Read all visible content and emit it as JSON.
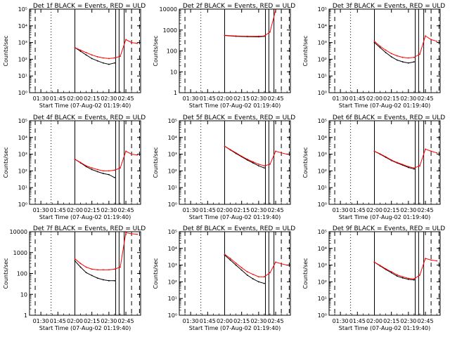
{
  "chart_data": [
    {
      "type": "line",
      "title": "Det 1f BLACK = Events, RED = ULD",
      "xlabel": "Start Time (07-Aug-02 01:19:40)",
      "ylabel": "Counts/sec",
      "xticks": [
        "01:30",
        "01:45",
        "02:00",
        "02:15",
        "02:30",
        "02:45"
      ],
      "yticks": [
        "10⁰",
        "10¹",
        "10²",
        "10³",
        "10⁴",
        "10⁵"
      ],
      "ylim": [
        1,
        100000
      ],
      "yscale": "log",
      "series": [
        {
          "color": "#000000",
          "x": [
            "02:00",
            "02:05",
            "02:10",
            "02:15",
            "02:20",
            "02:25",
            "02:30",
            "02:35"
          ],
          "y": [
            500,
            300,
            180,
            110,
            80,
            60,
            50,
            60
          ]
        },
        {
          "color": "#ff0000",
          "x": [
            "02:00",
            "02:05",
            "02:10",
            "02:15",
            "02:20",
            "02:25",
            "02:30",
            "02:35",
            "02:40",
            "02:45",
            "02:50",
            "02:55"
          ],
          "y": [
            500,
            350,
            250,
            180,
            140,
            120,
            110,
            120,
            150,
            1500,
            1000,
            900
          ]
        }
      ]
    },
    {
      "type": "line",
      "title": "Det 2f BLACK = Events, RED = ULD",
      "xlabel": "Start Time (07-Aug-02 01:19:40)",
      "ylabel": "Counts/sec",
      "xticks": [
        "01:30",
        "01:45",
        "02:00",
        "02:15",
        "02:30",
        "02:45"
      ],
      "yticks": [
        "1",
        "10",
        "100",
        "1000",
        "10000"
      ],
      "ylim": [
        1,
        10000
      ],
      "yscale": "log",
      "series": [
        {
          "color": "#000000",
          "x": [
            "02:00",
            "02:10",
            "02:20",
            "02:30",
            "02:35"
          ],
          "y": [
            550,
            500,
            480,
            470,
            500
          ]
        },
        {
          "color": "#ff0000",
          "x": [
            "02:00",
            "02:10",
            "02:20",
            "02:30",
            "02:35",
            "02:40",
            "02:45"
          ],
          "y": [
            560,
            520,
            500,
            500,
            520,
            800,
            9000
          ]
        }
      ]
    },
    {
      "type": "line",
      "title": "Det 3f BLACK = Events, RED = ULD",
      "xlabel": "Start Time (07-Aug-02 01:19:40)",
      "ylabel": "Counts/sec",
      "xticks": [
        "01:30",
        "01:45",
        "02:00",
        "02:15",
        "02:30",
        "02:45"
      ],
      "yticks": [
        "10⁰",
        "10¹",
        "10²",
        "10³",
        "10⁴",
        "10⁵"
      ],
      "ylim": [
        1,
        100000
      ],
      "yscale": "log",
      "series": [
        {
          "color": "#000000",
          "x": [
            "02:00",
            "02:05",
            "02:10",
            "02:15",
            "02:20",
            "02:25",
            "02:30",
            "02:35"
          ],
          "y": [
            1000,
            500,
            250,
            140,
            90,
            70,
            60,
            70
          ]
        },
        {
          "color": "#ff0000",
          "x": [
            "02:00",
            "02:05",
            "02:10",
            "02:15",
            "02:20",
            "02:25",
            "02:30",
            "02:35",
            "02:40",
            "02:45",
            "02:50",
            "02:55"
          ],
          "y": [
            1200,
            600,
            350,
            220,
            160,
            130,
            120,
            130,
            200,
            2500,
            1500,
            1200
          ]
        }
      ]
    },
    {
      "type": "line",
      "title": "Det 4f BLACK = Events, RED = ULD",
      "xlabel": "Start Time (07-Aug-02 01:19:40)",
      "ylabel": "Counts/sec",
      "xticks": [
        "01:30",
        "01:45",
        "02:00",
        "02:15",
        "02:30",
        "02:45"
      ],
      "yticks": [
        "10⁰",
        "10¹",
        "10²",
        "10³",
        "10⁴",
        "10⁵"
      ],
      "ylim": [
        1,
        100000
      ],
      "yscale": "log",
      "series": [
        {
          "color": "#000000",
          "x": [
            "02:00",
            "02:05",
            "02:10",
            "02:15",
            "02:20",
            "02:25",
            "02:30",
            "02:35"
          ],
          "y": [
            500,
            300,
            180,
            120,
            90,
            70,
            60,
            40
          ]
        },
        {
          "color": "#ff0000",
          "x": [
            "02:00",
            "02:05",
            "02:10",
            "02:15",
            "02:20",
            "02:25",
            "02:30",
            "02:35",
            "02:40",
            "02:45",
            "02:50",
            "02:55"
          ],
          "y": [
            500,
            320,
            200,
            150,
            120,
            100,
            100,
            110,
            150,
            1500,
            1000,
            900
          ]
        }
      ]
    },
    {
      "type": "line",
      "title": "Det 5f BLACK = Events, RED = ULD",
      "xlabel": "Start Time (07-Aug-02 01:19:40)",
      "ylabel": "Counts/sec",
      "xticks": [
        "01:30",
        "01:45",
        "02:00",
        "02:15",
        "02:30",
        "02:45"
      ],
      "yticks": [
        "10⁰",
        "10¹",
        "10²",
        "10³",
        "10⁴",
        "10⁵"
      ],
      "ylim": [
        1,
        100000
      ],
      "yscale": "log",
      "series": [
        {
          "color": "#000000",
          "x": [
            "02:00",
            "02:05",
            "02:10",
            "02:15",
            "02:20",
            "02:25",
            "02:30",
            "02:35"
          ],
          "y": [
            3000,
            1800,
            1100,
            700,
            450,
            300,
            200,
            150
          ]
        },
        {
          "color": "#ff0000",
          "x": [
            "02:00",
            "02:05",
            "02:10",
            "02:15",
            "02:20",
            "02:25",
            "02:30",
            "02:35",
            "02:40",
            "02:45",
            "02:50",
            "02:55"
          ],
          "y": [
            3000,
            1900,
            1200,
            750,
            500,
            350,
            250,
            200,
            250,
            1500,
            1200,
            1000
          ]
        }
      ]
    },
    {
      "type": "line",
      "title": "Det 6f BLACK = Events, RED = ULD",
      "xlabel": "Start Time (07-Aug-02 01:19:40)",
      "ylabel": "Counts/sec",
      "xticks": [
        "01:30",
        "01:45",
        "02:00",
        "02:15",
        "02:30",
        "02:45"
      ],
      "yticks": [
        "10⁰",
        "10¹",
        "10²",
        "10³",
        "10⁴",
        "10⁵"
      ],
      "ylim": [
        1,
        100000
      ],
      "yscale": "log",
      "series": [
        {
          "color": "#000000",
          "x": [
            "02:00",
            "02:05",
            "02:10",
            "02:15",
            "02:20",
            "02:25",
            "02:30",
            "02:35"
          ],
          "y": [
            1500,
            1000,
            650,
            420,
            300,
            220,
            160,
            130
          ]
        },
        {
          "color": "#ff0000",
          "x": [
            "02:00",
            "02:05",
            "02:10",
            "02:15",
            "02:20",
            "02:25",
            "02:30",
            "02:35",
            "02:40",
            "02:45",
            "02:50",
            "02:55"
          ],
          "y": [
            1500,
            1050,
            700,
            450,
            320,
            240,
            180,
            150,
            200,
            2000,
            1500,
            1200
          ]
        }
      ]
    },
    {
      "type": "line",
      "title": "Det 7f BLACK = Events, RED = ULD",
      "xlabel": "Start Time (07-Aug-02 01:19:40)",
      "ylabel": "Counts/sec",
      "xticks": [
        "01:30",
        "01:45",
        "02:00",
        "02:15",
        "02:30",
        "02:45"
      ],
      "yticks": [
        "1",
        "10",
        "100",
        "1000",
        "10000"
      ],
      "ylim": [
        1,
        10000
      ],
      "yscale": "log",
      "series": [
        {
          "color": "#000000",
          "x": [
            "02:00",
            "02:05",
            "02:10",
            "02:15",
            "02:20",
            "02:25",
            "02:30",
            "02:35"
          ],
          "y": [
            400,
            200,
            110,
            80,
            60,
            50,
            45,
            45
          ]
        },
        {
          "color": "#ff0000",
          "x": [
            "02:00",
            "02:05",
            "02:10",
            "02:15",
            "02:20",
            "02:25",
            "02:30",
            "02:35",
            "02:40",
            "02:45",
            "02:50",
            "02:55"
          ],
          "y": [
            500,
            300,
            200,
            160,
            150,
            150,
            150,
            160,
            200,
            9000,
            8000,
            7500
          ]
        }
      ]
    },
    {
      "type": "line",
      "title": "Det 8f BLACK = Events, RED = ULD",
      "xlabel": "Start Time (07-Aug-02 01:19:40)",
      "ylabel": "Counts/sec",
      "xticks": [
        "01:30",
        "01:45",
        "02:00",
        "02:15",
        "02:30",
        "02:45"
      ],
      "yticks": [
        "10⁰",
        "10¹",
        "10²",
        "10³",
        "10⁴",
        "10⁵"
      ],
      "ylim": [
        1,
        100000
      ],
      "yscale": "log",
      "series": [
        {
          "color": "#000000",
          "x": [
            "02:00",
            "02:05",
            "02:10",
            "02:15",
            "02:20",
            "02:25",
            "02:30",
            "02:35"
          ],
          "y": [
            4000,
            2000,
            1000,
            500,
            250,
            150,
            100,
            80
          ]
        },
        {
          "color": "#ff0000",
          "x": [
            "02:00",
            "02:05",
            "02:10",
            "02:15",
            "02:20",
            "02:25",
            "02:30",
            "02:35",
            "02:40",
            "02:45",
            "02:50",
            "02:55"
          ],
          "y": [
            4500,
            2500,
            1300,
            700,
            400,
            280,
            200,
            200,
            350,
            1500,
            1200,
            1000
          ]
        }
      ]
    },
    {
      "type": "line",
      "title": "Det 9f BLACK = Events, RED = ULD",
      "xlabel": "Start Time (07-Aug-02 01:19:40)",
      "ylabel": "Counts/sec",
      "xticks": [
        "01:30",
        "01:45",
        "02:00",
        "02:15",
        "02:30",
        "02:45"
      ],
      "yticks": [
        "10⁰",
        "10¹",
        "10²",
        "10³",
        "10⁴",
        "10⁵"
      ],
      "ylim": [
        1,
        100000
      ],
      "yscale": "log",
      "series": [
        {
          "color": "#000000",
          "x": [
            "02:00",
            "02:05",
            "02:10",
            "02:15",
            "02:20",
            "02:25",
            "02:30",
            "02:35"
          ],
          "y": [
            1500,
            900,
            550,
            350,
            220,
            170,
            140,
            130
          ]
        },
        {
          "color": "#ff0000",
          "x": [
            "02:00",
            "02:05",
            "02:10",
            "02:15",
            "02:20",
            "02:25",
            "02:30",
            "02:35",
            "02:40",
            "02:45",
            "02:50",
            "02:55"
          ],
          "y": [
            1500,
            950,
            600,
            400,
            260,
            200,
            160,
            150,
            250,
            2500,
            2000,
            1800
          ]
        }
      ]
    }
  ]
}
